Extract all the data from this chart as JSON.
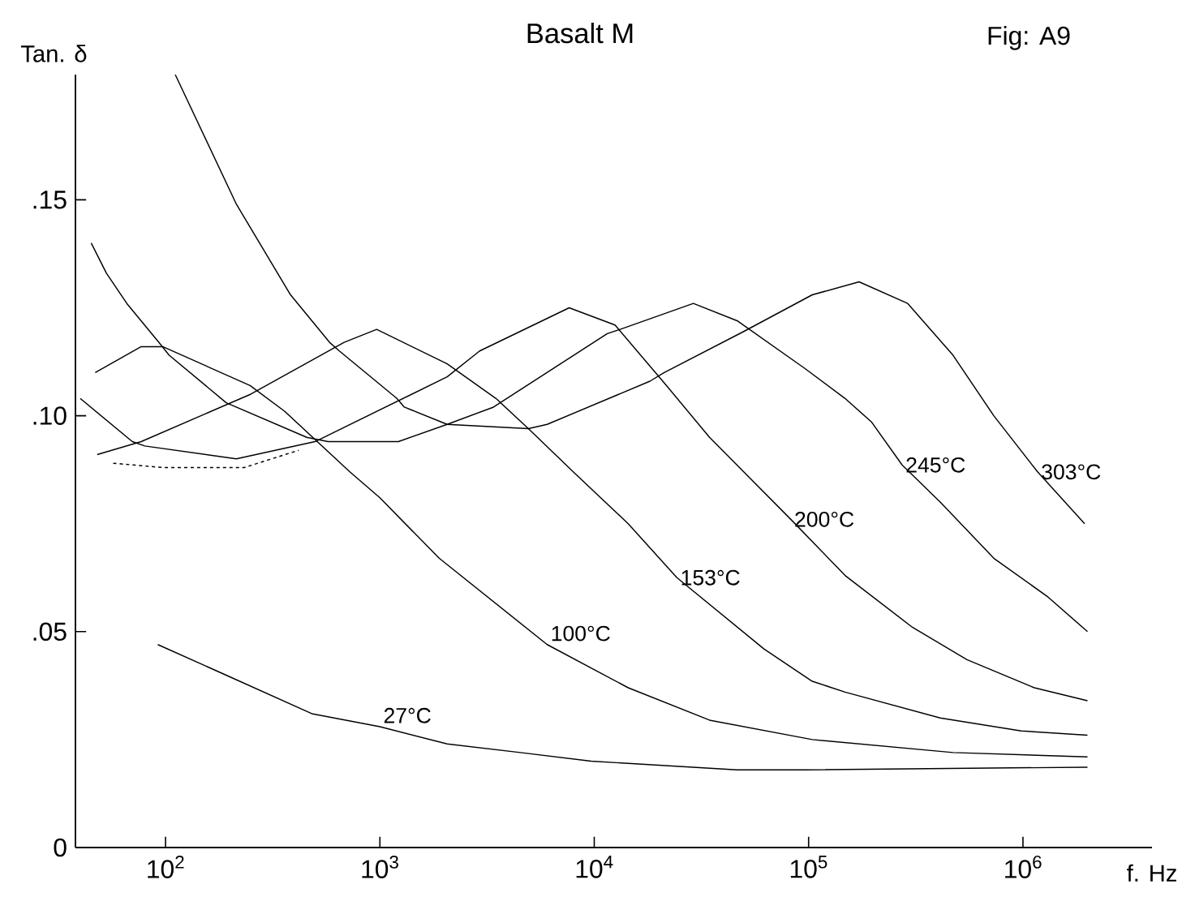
{
  "chart_data": {
    "type": "line",
    "title": "Basalt M",
    "xlabel": "f. Hz",
    "ylabel": "Tan. δ",
    "annotations": [
      "Fig: A9"
    ],
    "log": "x",
    "xlim": [
      38,
      4000000
    ],
    "ylim": [
      0,
      0.179
    ],
    "xticks": [
      {
        "value": 100,
        "label": "10$^{2}$"
      },
      {
        "value": 1000,
        "label": "10$^{3}$"
      },
      {
        "value": 10000,
        "label": "10$^{4}$"
      },
      {
        "value": 100000,
        "label": "10$^{5}$"
      },
      {
        "value": 1000000,
        "label": "10$^{6}$"
      }
    ],
    "yticks": [
      0,
      {
        "value": 0.05,
        "label": ".05"
      },
      {
        "value": 0.1,
        "label": ".10"
      },
      {
        "value": 0.15,
        "label": ".15"
      }
    ],
    "series": [
      {
        "name": "27°C",
        "color": "#000000",
        "x": [
          92,
          190,
          481,
          1000,
          2060,
          4520,
          9660,
          46400,
          95700,
          2000000
        ],
        "values": [
          0.047,
          0.04,
          0.031,
          0.028,
          0.024,
          0.022,
          0.02,
          0.018,
          0.018,
          0.0186
        ]
      },
      {
        "name": "100°C",
        "color": "#000000",
        "x": [
          47,
          77,
          97,
          248,
          360,
          724,
          1000,
          1890,
          6030,
          14400,
          34500,
          104000,
          472000,
          2000000
        ],
        "values": [
          0.11,
          0.116,
          0.116,
          0.107,
          0.101,
          0.087,
          0.081,
          0.067,
          0.047,
          0.037,
          0.0295,
          0.025,
          0.022,
          0.021
        ]
      },
      {
        "name": "153°C",
        "color": "#000000",
        "x": [
          48,
          77,
          250,
          681,
          966,
          2060,
          3480,
          4930,
          7980,
          14400,
          24300,
          61900,
          104000,
          148000,
          411000,
          982000,
          2000000
        ],
        "values": [
          0.091,
          0.094,
          0.105,
          0.117,
          0.12,
          0.112,
          0.104,
          0.097,
          0.087,
          0.075,
          0.0625,
          0.046,
          0.0385,
          0.036,
          0.03,
          0.027,
          0.026
        ]
      },
      {
        "name": "200°C",
        "color": "#000000",
        "x": [
          40,
          70,
          80,
          214,
          498,
          2060,
          2920,
          7640,
          12500,
          21700,
          34500,
          49800,
          82600,
          148000,
          305000,
          548000,
          1130000,
          2000000
        ],
        "values": [
          0.104,
          0.094,
          0.093,
          0.09,
          0.094,
          0.109,
          0.115,
          0.125,
          0.121,
          0.107,
          0.095,
          0.087,
          0.076,
          0.063,
          0.051,
          0.0435,
          0.037,
          0.034
        ]
      },
      {
        "name": "245°C",
        "color": "#000000",
        "x": [
          45,
          53,
          66,
          93,
          104,
          192,
          456,
          573,
          1220,
          2060,
          3390,
          11500,
          13200,
          29000,
          46400,
          95700,
          148000,
          197000,
          273000,
          411000,
          731000,
          1310000,
          2000000
        ],
        "values": [
          0.14,
          0.133,
          0.126,
          0.117,
          0.114,
          0.103,
          0.095,
          0.094,
          0.094,
          0.098,
          0.102,
          0.119,
          0.12,
          0.126,
          0.122,
          0.111,
          0.104,
          0.0985,
          0.0886,
          0.08,
          0.067,
          0.058,
          0.05
        ]
      },
      {
        "name": "303°C",
        "color": "#000000",
        "x": [
          111,
          214,
          383,
          582,
          647,
          1200,
          1300,
          2060,
          4930,
          6030,
          18200,
          21200,
          49800,
          104000,
          172000,
          290000,
          472000,
          731000,
          1170000,
          1940000
        ],
        "values": [
          0.179,
          0.149,
          0.128,
          0.117,
          0.115,
          0.104,
          0.102,
          0.098,
          0.097,
          0.098,
          0.108,
          0.11,
          0.1195,
          0.128,
          0.131,
          0.126,
          0.114,
          0.1,
          0.087,
          0.075
        ]
      },
      {
        "color": "#000000",
        "line_style": "dashed",
        "x": [
          57,
          97,
          150,
          233,
          418
        ],
        "values": [
          0.089,
          0.088,
          0.088,
          0.088,
          0.092
        ]
      }
    ]
  }
}
